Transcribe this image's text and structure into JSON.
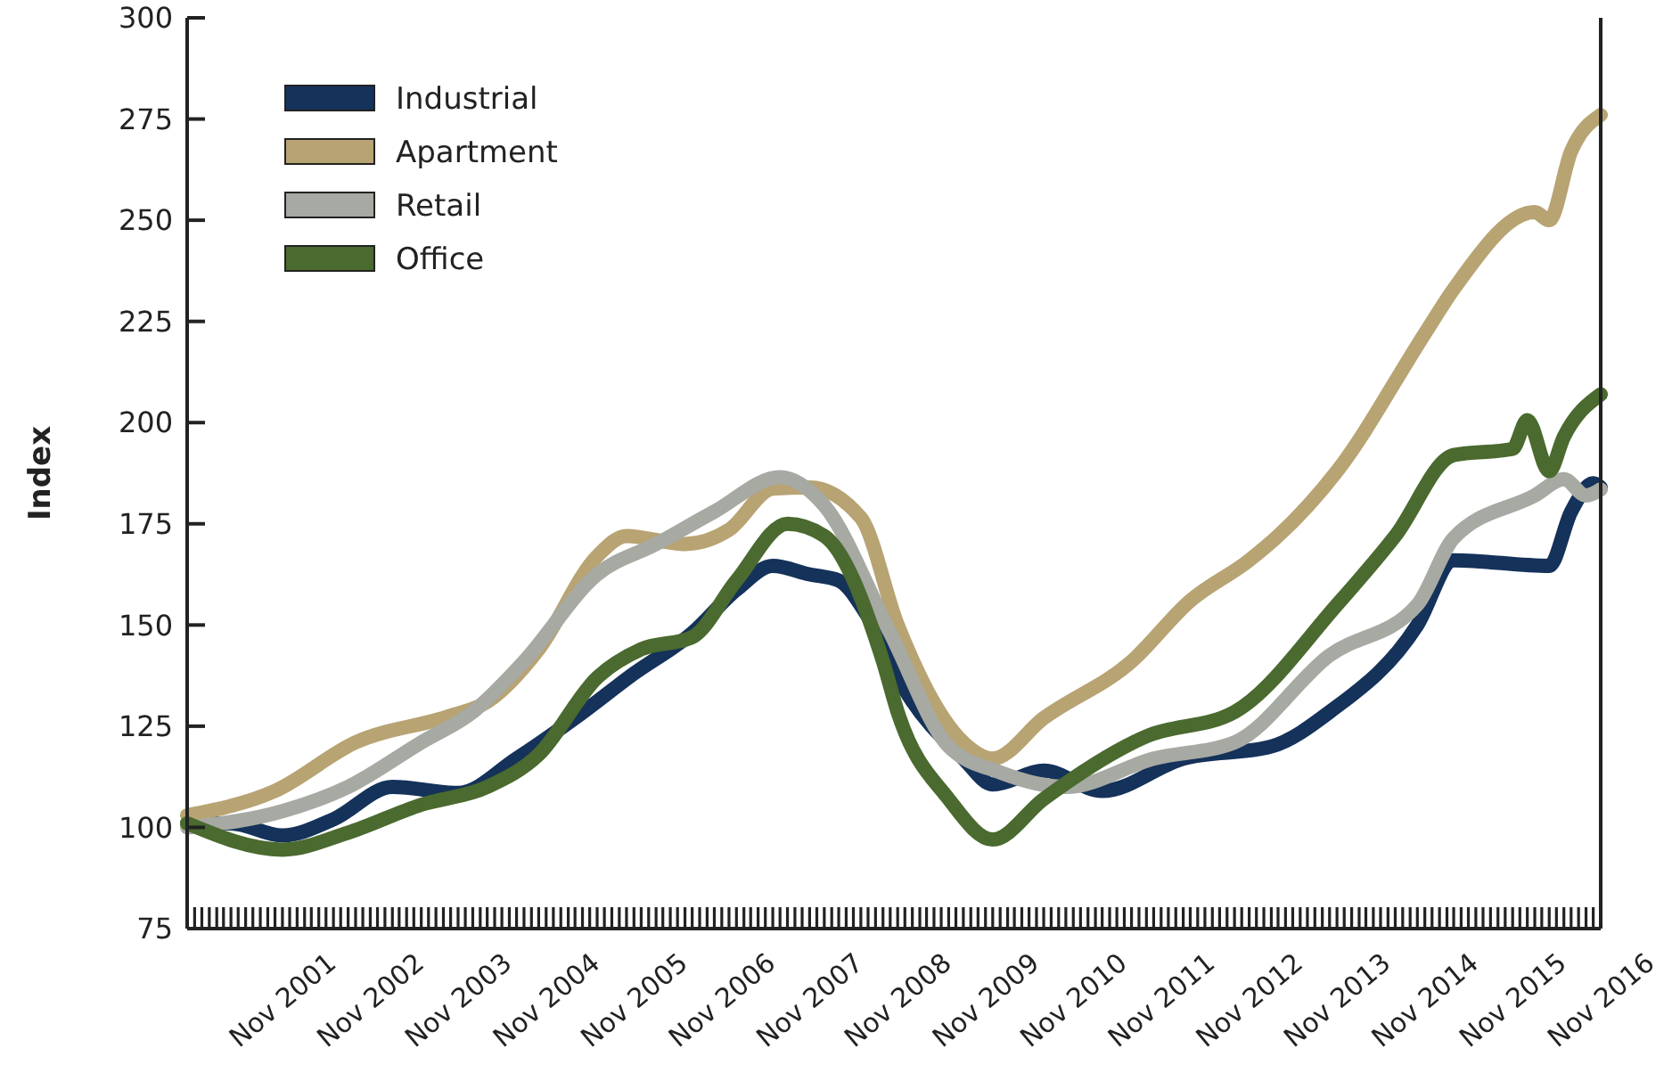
{
  "chart_data": {
    "type": "line",
    "ylabel": "Index",
    "ylim": [
      75,
      300
    ],
    "yticks": [
      75,
      100,
      125,
      150,
      175,
      200,
      225,
      250,
      275,
      300
    ],
    "xlim": [
      "2000-10",
      "2016-11"
    ],
    "xticks": [
      {
        "value": "2001-11",
        "label": "Nov 2001"
      },
      {
        "value": "2002-11",
        "label": "Nov 2002"
      },
      {
        "value": "2003-11",
        "label": "Nov 2003"
      },
      {
        "value": "2004-11",
        "label": "Nov 2004"
      },
      {
        "value": "2005-11",
        "label": "Nov 2005"
      },
      {
        "value": "2006-11",
        "label": "Nov 2006"
      },
      {
        "value": "2007-11",
        "label": "Nov 2007"
      },
      {
        "value": "2008-11",
        "label": "Nov 2008"
      },
      {
        "value": "2009-11",
        "label": "Nov 2009"
      },
      {
        "value": "2010-11",
        "label": "Nov 2010"
      },
      {
        "value": "2011-11",
        "label": "Nov 2011"
      },
      {
        "value": "2012-11",
        "label": "Nov 2012"
      },
      {
        "value": "2013-11",
        "label": "Nov 2013"
      },
      {
        "value": "2014-11",
        "label": "Nov 2014"
      },
      {
        "value": "2015-11",
        "label": "Nov 2015"
      },
      {
        "value": "2016-11",
        "label": "Nov 2016"
      }
    ],
    "grid": false,
    "legend": "top left",
    "marker": "none",
    "line_style": "solid",
    "series": [
      {
        "name": "Industrial",
        "color": "#14325a",
        "x": [
          "2000-10",
          "2001-04",
          "2001-11",
          "2002-06",
          "2003-02",
          "2003-11",
          "2004-07",
          "2005-03",
          "2005-11",
          "2006-07",
          "2007-01",
          "2007-06",
          "2007-11",
          "2008-03",
          "2008-07",
          "2008-12",
          "2009-08",
          "2009-12",
          "2010-07",
          "2011-03",
          "2012-02",
          "2013-02",
          "2013-10",
          "2014-10",
          "2015-03",
          "2016-04",
          "2016-07",
          "2016-10",
          "2016-11"
        ],
        "values": [
          101,
          101,
          98,
          102,
          110,
          108.5,
          117,
          127,
          138,
          148,
          158.7,
          164.6,
          162.5,
          161,
          152,
          134,
          117,
          110.6,
          114,
          109,
          117,
          120,
          128.5,
          150,
          166,
          164.6,
          178,
          185,
          184
        ]
      },
      {
        "name": "Apartment",
        "color": "#b8a373",
        "x": [
          "2000-10",
          "2001-10",
          "2002-09",
          "2003-10",
          "2004-03",
          "2004-10",
          "2005-06",
          "2005-10",
          "2006-06",
          "2006-12",
          "2007-06",
          "2007-11",
          "2008-06",
          "2008-11",
          "2009-08",
          "2009-12",
          "2010-07",
          "2011-07",
          "2012-03",
          "2012-11",
          "2013-03",
          "2013-11",
          "2014-11",
          "2015-03",
          "2016-02",
          "2016-04",
          "2016-07",
          "2016-11"
        ],
        "values": [
          103,
          109,
          121,
          127.6,
          131,
          144,
          167,
          172,
          170,
          173.5,
          183.7,
          184,
          176.5,
          150,
          121,
          117,
          127,
          141,
          156,
          166,
          172,
          188,
          222,
          233,
          252,
          250,
          267,
          276
        ]
      },
      {
        "name": "Retail",
        "color": "#a7a9a3",
        "x": [
          "2000-10",
          "2001-11",
          "2002-08",
          "2003-06",
          "2004-01",
          "2004-08",
          "2005-06",
          "2006-02",
          "2006-10",
          "2007-07",
          "2008-01",
          "2008-10",
          "2009-06",
          "2010-01",
          "2010-10",
          "2011-10",
          "2012-09",
          "2013-10",
          "2014-10",
          "2015-03",
          "2016-02",
          "2016-06",
          "2016-09",
          "2016-11"
        ],
        "values": [
          100,
          104,
          110,
          121,
          128.5,
          141,
          162.5,
          170,
          178,
          186.5,
          179.5,
          148,
          120,
          113.6,
          110,
          117,
          121,
          142.5,
          155,
          171.5,
          182,
          186,
          182,
          183.5
        ]
      },
      {
        "name": "Office",
        "color": "#4a6a2f",
        "x": [
          "2000-10",
          "2001-11",
          "2002-08",
          "2003-06",
          "2004-03",
          "2004-10",
          "2005-06",
          "2005-12",
          "2006-07",
          "2007-01",
          "2007-08",
          "2008-01",
          "2008-09",
          "2008-11",
          "2009-06",
          "2009-12",
          "2010-07",
          "2011-09",
          "2012-09",
          "2013-11",
          "2014-07",
          "2015-03",
          "2015-11",
          "2016-01",
          "2016-04",
          "2016-06",
          "2016-11"
        ],
        "values": [
          101,
          94.5,
          98.7,
          105.6,
          110,
          118,
          137,
          144,
          147,
          161,
          175,
          172,
          141,
          128.5,
          107,
          97,
          107,
          122.5,
          128.5,
          155,
          172,
          192,
          193.5,
          200.6,
          188,
          196.5,
          207
        ]
      }
    ]
  }
}
